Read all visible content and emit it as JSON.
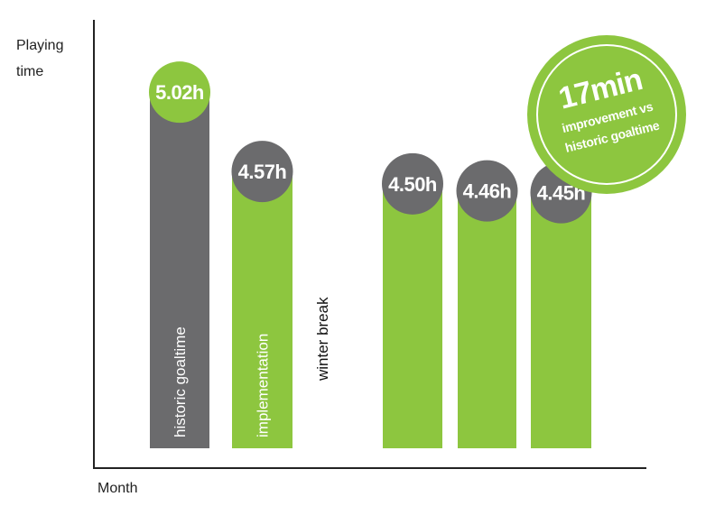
{
  "chart_data": {
    "type": "bar",
    "ylabel": "Playing time",
    "xlabel": "Month",
    "ylim": [
      3.0,
      5.2
    ],
    "grid": false,
    "legend": "none",
    "categories": [
      "historic goaltime",
      "implementation",
      "winter break",
      "",
      "",
      ""
    ],
    "values": [
      5.02,
      4.57,
      null,
      4.5,
      4.46,
      4.45
    ],
    "value_labels": [
      "5.02h",
      "4.57h",
      "",
      "4.50h",
      "4.46h",
      "4.45h"
    ],
    "bar_colors": [
      "#6b6b6d",
      "#8dc63f",
      null,
      "#8dc63f",
      "#8dc63f",
      "#8dc63f"
    ],
    "bubble_colors": [
      "#8dc63f",
      "#6b6b6d",
      null,
      "#6b6b6d",
      "#6b6b6d",
      "#6b6b6d"
    ],
    "annotation": {
      "headline": "17min",
      "line1": "improvement vs",
      "line2": "historic goaltime",
      "color": "#8dc63f"
    }
  },
  "colors": {
    "green": "#8dc63f",
    "grey": "#6b6b6d",
    "axis": "#222222"
  }
}
